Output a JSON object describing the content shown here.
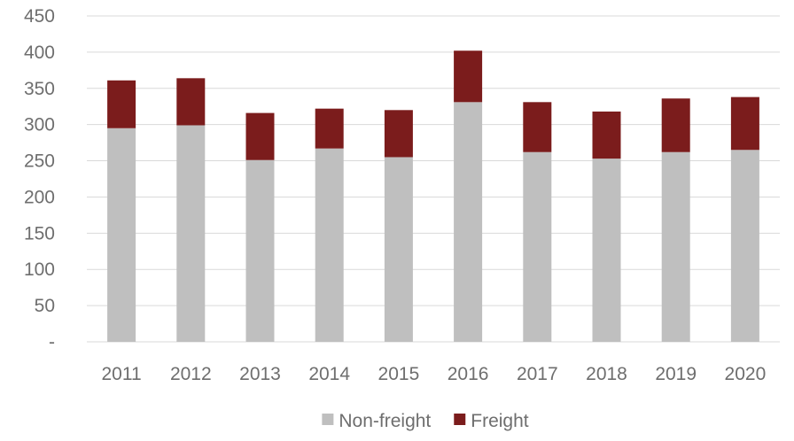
{
  "chart_data": {
    "type": "bar",
    "stacked": true,
    "title": "",
    "xlabel": "",
    "ylabel": "",
    "categories": [
      "2011",
      "2012",
      "2013",
      "2014",
      "2015",
      "2016",
      "2017",
      "2018",
      "2019",
      "2020"
    ],
    "series": [
      {
        "name": "Non-freight",
        "color": "#bfbfbf",
        "values": [
          295,
          299,
          251,
          267,
          255,
          331,
          262,
          253,
          262,
          265
        ]
      },
      {
        "name": "Freight",
        "color": "#7b1c1c",
        "values": [
          66,
          65,
          65,
          55,
          65,
          71,
          69,
          65,
          74,
          73
        ]
      }
    ],
    "ylim": [
      0,
      450
    ],
    "yticks": [
      0,
      50,
      100,
      150,
      200,
      250,
      300,
      350,
      400,
      450
    ],
    "ytick_labels": [
      "-",
      "50",
      "100",
      "150",
      "200",
      "250",
      "300",
      "350",
      "400",
      "450"
    ],
    "grid": true,
    "legend_position": "bottom",
    "colors": {
      "gridline": "#d9d9d9",
      "axis_text": "#6e6e6e"
    }
  }
}
